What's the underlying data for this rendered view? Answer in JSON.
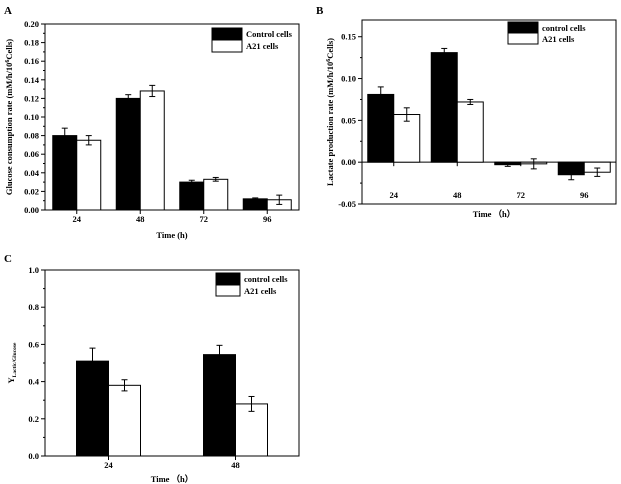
{
  "chart_data": [
    {
      "panel": "A",
      "type": "bar",
      "categories": [
        "24",
        "48",
        "72",
        "96"
      ],
      "series": [
        {
          "name": "Control cells",
          "color": "#000000",
          "values": [
            0.08,
            0.12,
            0.03,
            0.012
          ],
          "errors": [
            0.008,
            0.004,
            0.002,
            0.001
          ]
        },
        {
          "name": "A21 cells",
          "color": "#ffffff",
          "values": [
            0.075,
            0.128,
            0.033,
            0.011
          ],
          "errors": [
            0.005,
            0.006,
            0.002,
            0.005
          ]
        }
      ],
      "title": "",
      "xlabel": "Time (h)",
      "ylabel_main": "Glucose consumption rate (mM/h/10",
      "ylabel_sup": "6",
      "ylabel_tail": "Cells)",
      "ylim": [
        0,
        0.2
      ],
      "yticks": [
        0.0,
        0.02,
        0.04,
        0.06,
        0.08,
        0.1,
        0.12,
        0.14,
        0.16,
        0.18,
        0.2
      ],
      "ytick_labels": [
        "0.00",
        "0.02",
        "0.04",
        "0.06",
        "0.08",
        "0.10",
        "0.12",
        "0.14",
        "0.16",
        "0.18",
        "0.20"
      ],
      "legend_position": "top-right"
    },
    {
      "panel": "B",
      "type": "bar",
      "categories": [
        "24",
        "48",
        "72",
        "96"
      ],
      "series": [
        {
          "name": "control cells",
          "color": "#000000",
          "values": [
            0.081,
            0.131,
            -0.003,
            -0.015
          ],
          "errors": [
            0.009,
            0.005,
            0.002,
            0.006
          ]
        },
        {
          "name": "A21 cells",
          "color": "#ffffff",
          "values": [
            0.057,
            0.072,
            -0.002,
            -0.012
          ],
          "errors": [
            0.008,
            0.003,
            0.006,
            0.005
          ]
        }
      ],
      "title": "",
      "xlabel": "Time （h）",
      "ylabel_main": "Lactate  production rate (mM/h/10",
      "ylabel_sup": "6",
      "ylabel_tail": "Cells)",
      "ylim": [
        -0.05,
        0.17
      ],
      "yticks": [
        -0.05,
        0.0,
        0.05,
        0.1,
        0.15
      ],
      "ytick_labels": [
        "-0.05",
        "0.00",
        "0.05",
        "0.10",
        "0.15"
      ],
      "legend_position": "top-right"
    },
    {
      "panel": "C",
      "type": "bar",
      "categories": [
        "24",
        "48"
      ],
      "series": [
        {
          "name": "control cells",
          "color": "#000000",
          "values": [
            0.51,
            0.545
          ],
          "errors": [
            0.07,
            0.05
          ]
        },
        {
          "name": "A21 cells",
          "color": "#ffffff",
          "values": [
            0.38,
            0.28
          ],
          "errors": [
            0.03,
            0.04
          ]
        }
      ],
      "title": "",
      "xlabel": "Time （h）",
      "ylabel_main": "Y",
      "ylabel_sub": "Lactic/Glucose",
      "ylim": [
        0,
        1.0
      ],
      "yticks": [
        0.0,
        0.2,
        0.4,
        0.6,
        0.8,
        1.0
      ],
      "ytick_labels": [
        "0.0",
        "0.2",
        "0.4",
        "0.6",
        "0.8",
        "1.0"
      ],
      "legend_position": "top-right"
    }
  ]
}
